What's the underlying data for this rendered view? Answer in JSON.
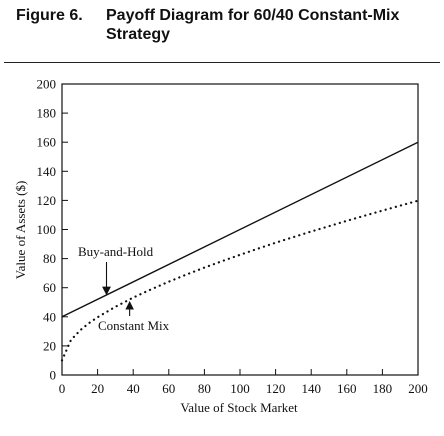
{
  "figure": {
    "number": "Figure 6.",
    "title": "Payoff Diagram for 60/40 Constant-Mix Strategy"
  },
  "chart_data": {
    "type": "line",
    "title": "Payoff Diagram for 60/40 Constant-Mix Strategy",
    "xlabel": "Value of Stock Market",
    "ylabel": "Value of Assets ($)",
    "xlim": [
      0,
      200
    ],
    "ylim": [
      0,
      200
    ],
    "xticks": [
      0,
      20,
      40,
      60,
      80,
      100,
      120,
      140,
      160,
      180,
      200
    ],
    "yticks": [
      0,
      20,
      40,
      60,
      80,
      100,
      120,
      140,
      160,
      180,
      200
    ],
    "grid": false,
    "series": [
      {
        "name": "Buy-and-Hold",
        "style": "solid",
        "x": [
          0,
          200
        ],
        "y": [
          40,
          160
        ]
      },
      {
        "name": "Constant Mix",
        "style": "dotted",
        "x": [
          0,
          5,
          10,
          15,
          20,
          30,
          40,
          50,
          60,
          70,
          80,
          90,
          100,
          110,
          120,
          130,
          140,
          150,
          160,
          170,
          180,
          190,
          200
        ],
        "y": [
          10,
          24,
          30.5,
          35.5,
          39.7,
          46.9,
          53.2,
          58.8,
          64.1,
          69.1,
          73.8,
          78.3,
          82.6,
          86.8,
          90.9,
          94.8,
          98.6,
          102.3,
          106.0,
          109.5,
          113.0,
          116.4,
          119.8
        ]
      }
    ],
    "annotations": [
      {
        "text": "Buy-and-Hold",
        "points_to": "Buy-and-Hold"
      },
      {
        "text": "Constant Mix",
        "points_to": "Constant Mix"
      }
    ]
  },
  "colors": {
    "ink": "#111111",
    "background": "#ffffff"
  }
}
